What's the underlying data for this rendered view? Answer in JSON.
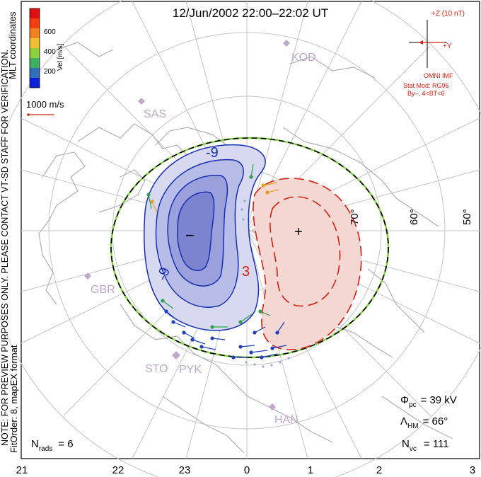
{
  "title": "12/Jun/2002 22:00–22:02 UT",
  "colorbar": {
    "label": "Vel [m/s]",
    "ticks": [
      "600",
      "400",
      "200"
    ],
    "colors": [
      "#e01010",
      "#f06010",
      "#f0a020",
      "#e8d040",
      "#90d040",
      "#40b060",
      "#3070b8",
      "#1020d8"
    ]
  },
  "coord_label": "MLT coordinates",
  "notice": "NOTE: FOR PREVIEW PURPOSES ONLY. PLEASE CONTACT VT-SD STAFF FOR VERIFICATION.",
  "fit_info": "FitOrder: 8, mapEX format",
  "ref_vector": "1000 m/s",
  "imf": {
    "z_label": "+Z (10 nT)",
    "y_label": "+Y",
    "source": "OMNI IMF",
    "model": "Stat Mod: RG96",
    "condition": "By–, 4<BT<6"
  },
  "latitudes": [
    "70°",
    "60°",
    "50°"
  ],
  "stations": [
    "KOD",
    "SAS",
    "GBR",
    "STO",
    "PYK",
    "HAN"
  ],
  "contours": {
    "neg_label": "-9",
    "neg_label2": "-9",
    "pos_label": "3",
    "min_marker": "−",
    "max_marker": "+"
  },
  "stats": {
    "phi_sym": "Φ",
    "phi_sub": "pc",
    "phi_val": "= 39 kV",
    "lambda_sym": "Λ",
    "lambda_sub": "HM",
    "lambda_val": "= 66°",
    "nvc_sym": "N",
    "nvc_sub": "vc",
    "nvc_val": "= 111",
    "nrads_sym": "N",
    "nrads_sub": "rads",
    "nrads_val": "= 6"
  },
  "mlt_ticks": [
    "21",
    "22",
    "23",
    "0",
    "1",
    "2",
    "3"
  ],
  "colors": {
    "negative": "#1a2fb0",
    "positive": "#d02010",
    "grid": "#b8b8b8",
    "station": "#c0a8c8"
  }
}
